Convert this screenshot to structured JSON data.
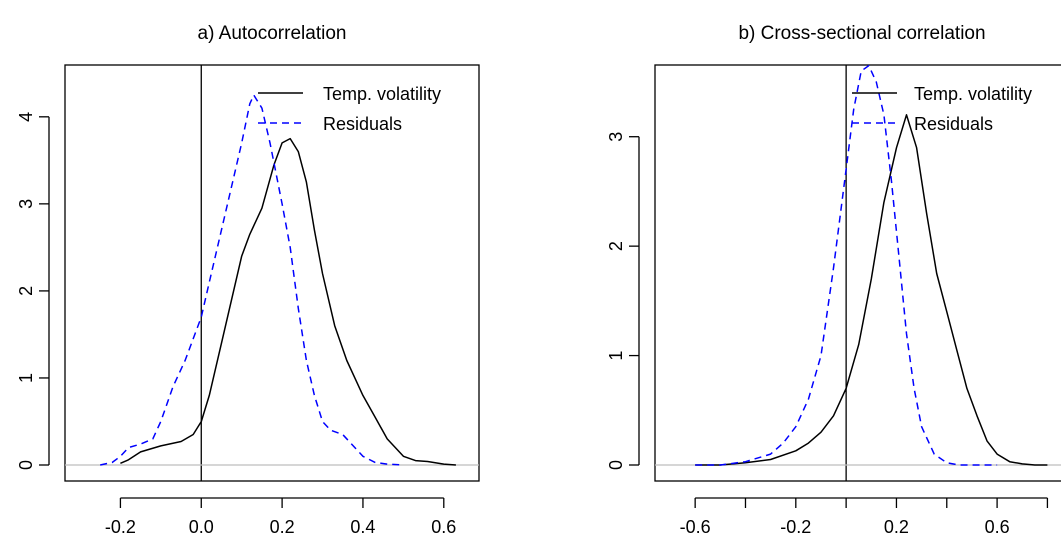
{
  "chart_data": [
    {
      "type": "line",
      "title": "a) Autocorrelation",
      "xlabel": "",
      "ylabel": "",
      "xlim": [
        -0.3,
        0.65
      ],
      "ylim": [
        0,
        4.4
      ],
      "xticks": [
        -0.2,
        0.0,
        0.2,
        0.4,
        0.6
      ],
      "xtick_labels": [
        "-0.2",
        "0.0",
        "0.2",
        "0.4",
        "0.6"
      ],
      "yticks": [
        0,
        1,
        2,
        3,
        4
      ],
      "ytick_labels": [
        "0",
        "1",
        "2",
        "3",
        "4"
      ],
      "vline": 0.0,
      "hline": 0,
      "legend": "top-right",
      "series": [
        {
          "name": "Temp. volatility",
          "style": "solid",
          "color": "#000000",
          "x": [
            -0.2,
            -0.18,
            -0.15,
            -0.1,
            -0.05,
            -0.02,
            0.0,
            0.02,
            0.05,
            0.08,
            0.1,
            0.12,
            0.15,
            0.18,
            0.2,
            0.22,
            0.24,
            0.26,
            0.28,
            0.3,
            0.33,
            0.36,
            0.4,
            0.43,
            0.46,
            0.5,
            0.53,
            0.56,
            0.6,
            0.63
          ],
          "y": [
            0.02,
            0.06,
            0.15,
            0.22,
            0.27,
            0.35,
            0.5,
            0.8,
            1.4,
            2.0,
            2.4,
            2.65,
            2.95,
            3.45,
            3.7,
            3.75,
            3.6,
            3.25,
            2.7,
            2.2,
            1.6,
            1.2,
            0.8,
            0.55,
            0.3,
            0.1,
            0.05,
            0.04,
            0.01,
            0.0
          ]
        },
        {
          "name": "Residuals",
          "style": "dashed",
          "color": "#0000ff",
          "x": [
            -0.25,
            -0.22,
            -0.2,
            -0.18,
            -0.15,
            -0.12,
            -0.1,
            -0.07,
            -0.04,
            -0.02,
            0.0,
            0.02,
            0.04,
            0.06,
            0.08,
            0.1,
            0.12,
            0.13,
            0.15,
            0.17,
            0.2,
            0.22,
            0.24,
            0.26,
            0.28,
            0.3,
            0.32,
            0.35,
            0.37,
            0.4,
            0.43,
            0.46,
            0.5
          ],
          "y": [
            0.0,
            0.03,
            0.1,
            0.2,
            0.24,
            0.3,
            0.5,
            0.9,
            1.2,
            1.45,
            1.7,
            2.1,
            2.5,
            2.9,
            3.3,
            3.7,
            4.15,
            4.25,
            4.1,
            3.7,
            3.0,
            2.5,
            1.8,
            1.2,
            0.8,
            0.5,
            0.4,
            0.35,
            0.25,
            0.1,
            0.03,
            0.01,
            0.0
          ]
        }
      ]
    },
    {
      "type": "line",
      "title": "b) Cross-sectional correlation",
      "xlabel": "",
      "ylabel": "",
      "xlim": [
        -0.7,
        0.85
      ],
      "ylim": [
        0,
        3.5
      ],
      "xticks": [
        -0.6,
        -0.4,
        -0.2,
        0.0,
        0.2,
        0.4,
        0.6,
        0.8
      ],
      "xtick_labels": [
        "-0.6",
        "",
        "-0.2",
        "",
        "0.2",
        "",
        "0.6",
        ""
      ],
      "yticks": [
        0,
        1,
        2,
        3
      ],
      "ytick_labels": [
        "0",
        "1",
        "2",
        "3"
      ],
      "vline": 0.0,
      "hline": 0,
      "legend": "top-right",
      "series": [
        {
          "name": "Temp. volatility",
          "style": "solid",
          "color": "#000000",
          "x": [
            -0.6,
            -0.5,
            -0.4,
            -0.3,
            -0.2,
            -0.15,
            -0.1,
            -0.05,
            0.0,
            0.05,
            0.1,
            0.15,
            0.2,
            0.24,
            0.28,
            0.32,
            0.36,
            0.4,
            0.44,
            0.48,
            0.52,
            0.56,
            0.6,
            0.65,
            0.7,
            0.75,
            0.8
          ],
          "y": [
            0.0,
            0.0,
            0.02,
            0.05,
            0.13,
            0.2,
            0.3,
            0.45,
            0.7,
            1.1,
            1.7,
            2.4,
            2.9,
            3.2,
            2.9,
            2.3,
            1.75,
            1.4,
            1.05,
            0.7,
            0.45,
            0.22,
            0.1,
            0.03,
            0.01,
            0.0,
            0.0
          ]
        },
        {
          "name": "Residuals",
          "style": "dashed",
          "color": "#0000ff",
          "x": [
            -0.6,
            -0.5,
            -0.4,
            -0.3,
            -0.25,
            -0.2,
            -0.15,
            -0.1,
            -0.05,
            0.0,
            0.03,
            0.06,
            0.09,
            0.12,
            0.15,
            0.18,
            0.21,
            0.24,
            0.27,
            0.3,
            0.35,
            0.4,
            0.45,
            0.5,
            0.6
          ],
          "y": [
            0.0,
            0.0,
            0.03,
            0.1,
            0.2,
            0.35,
            0.6,
            1.0,
            1.8,
            2.7,
            3.25,
            3.6,
            3.65,
            3.5,
            3.2,
            2.6,
            1.9,
            1.2,
            0.7,
            0.35,
            0.1,
            0.02,
            0.0,
            0.0,
            0.0
          ]
        }
      ]
    }
  ]
}
